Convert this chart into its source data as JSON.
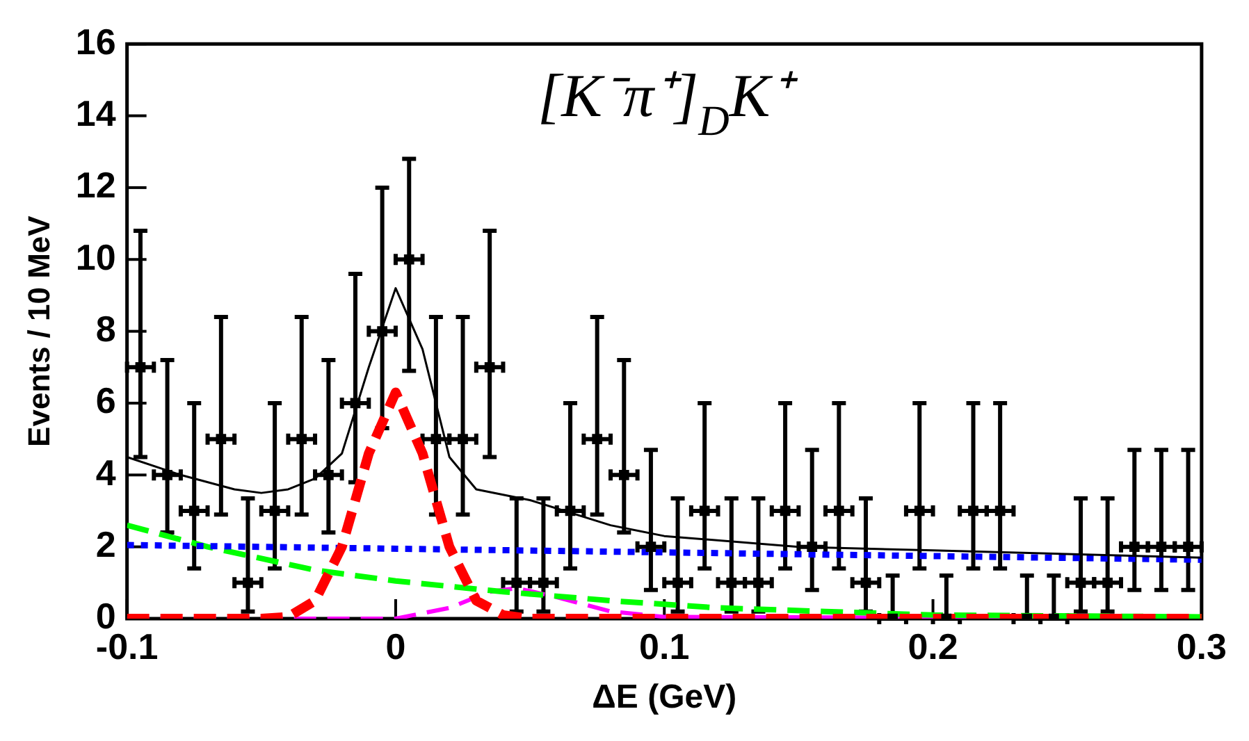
{
  "chart_data": {
    "type": "scatter",
    "title": "[K⁻π⁺]$_{D}$K⁺",
    "xlabel": "ΔE (GeV)",
    "ylabel": "Events / 10 MeV",
    "xlim": [
      -0.1,
      0.3
    ],
    "xticks": [
      -0.1,
      0,
      0.1,
      0.2,
      0.3
    ],
    "ylim": [
      0,
      16
    ],
    "yticks": [
      0,
      2,
      4,
      6,
      8,
      10,
      12,
      14,
      16
    ],
    "grid": false,
    "legend": false,
    "series": [
      {
        "color": "#000000",
        "marker": "square",
        "x": [
          -0.095,
          -0.085,
          -0.075,
          -0.065,
          -0.055,
          -0.045,
          -0.035,
          -0.025,
          -0.015,
          -0.005,
          0.005,
          0.015,
          0.025,
          0.035,
          0.045,
          0.055,
          0.065,
          0.075,
          0.085,
          0.095,
          0.105,
          0.115,
          0.125,
          0.135,
          0.145,
          0.155,
          0.165,
          0.175,
          0.185,
          0.195,
          0.205,
          0.215,
          0.225,
          0.235,
          0.245,
          0.255,
          0.265,
          0.275,
          0.285,
          0.295
        ],
        "values": [
          7,
          4,
          3,
          5,
          1,
          3,
          5,
          4,
          6,
          8,
          10,
          5,
          5,
          7,
          1,
          1,
          3,
          5,
          4,
          2,
          1,
          3,
          1,
          1,
          3,
          2,
          3,
          1,
          0,
          3,
          0,
          3,
          3,
          0,
          0,
          1,
          1,
          2,
          2,
          2
        ],
        "xerrors": [
          0.005,
          0.005,
          0.005,
          0.005,
          0.005,
          0.005,
          0.005,
          0.005,
          0.005,
          0.005,
          0.005,
          0.005,
          0.005,
          0.005,
          0.005,
          0.005,
          0.005,
          0.005,
          0.005,
          0.005,
          0.005,
          0.005,
          0.005,
          0.005,
          0.005,
          0.005,
          0.005,
          0.005,
          0.005,
          0.005,
          0.005,
          0.005,
          0.005,
          0.005,
          0.005,
          0.005,
          0.005,
          0.005,
          0.005,
          0.005
        ],
        "errors": [
          [
            4.5,
            10.8
          ],
          [
            2.4,
            7.2
          ],
          [
            1.4,
            6
          ],
          [
            2.9,
            8.4
          ],
          [
            0.2,
            3.35
          ],
          [
            1.4,
            6
          ],
          [
            2.9,
            8.4
          ],
          [
            2.4,
            7.2
          ],
          [
            3.8,
            9.6
          ],
          [
            5.3,
            12
          ],
          [
            6.9,
            12.8
          ],
          [
            2.9,
            8.4
          ],
          [
            2.9,
            8.4
          ],
          [
            4.5,
            10.8
          ],
          [
            0.2,
            3.35
          ],
          [
            0.2,
            3.35
          ],
          [
            1.4,
            6
          ],
          [
            2.9,
            8.4
          ],
          [
            2.4,
            7.2
          ],
          [
            0.8,
            4.7
          ],
          [
            0.2,
            3.35
          ],
          [
            1.4,
            6
          ],
          [
            0.2,
            3.35
          ],
          [
            0.2,
            3.35
          ],
          [
            1.4,
            6
          ],
          [
            0.8,
            4.7
          ],
          [
            1.4,
            6
          ],
          [
            0.2,
            3.35
          ],
          [
            0,
            1.2
          ],
          [
            1.4,
            6
          ],
          [
            0,
            1.2
          ],
          [
            1.4,
            6
          ],
          [
            1.4,
            6
          ],
          [
            0,
            1.2
          ],
          [
            0,
            1.2
          ],
          [
            0.2,
            3.35
          ],
          [
            0.2,
            3.35
          ],
          [
            0.8,
            4.7
          ],
          [
            0.8,
            4.7
          ],
          [
            0.8,
            4.7
          ]
        ]
      },
      {
        "type": "line",
        "color": "#000000",
        "marker": "none",
        "line_style": "solid",
        "x": [
          -0.1,
          -0.08,
          -0.06,
          -0.05,
          -0.04,
          -0.03,
          -0.02,
          -0.01,
          0,
          0.01,
          0.02,
          0.03,
          0.05,
          0.08,
          0.1,
          0.15,
          0.2,
          0.3
        ],
        "values": [
          4.5,
          4.0,
          3.6,
          3.5,
          3.6,
          3.9,
          4.6,
          7.0,
          9.2,
          7.5,
          4.5,
          3.6,
          3.3,
          2.6,
          2.3,
          2.0,
          1.9,
          1.7
        ]
      },
      {
        "type": "line",
        "color": "#ff0000",
        "marker": "none",
        "line_style": "dashed",
        "x": [
          -0.1,
          -0.05,
          -0.04,
          -0.03,
          -0.02,
          -0.01,
          0,
          0.01,
          0.02,
          0.03,
          0.04,
          0.05,
          0.3
        ],
        "values": [
          0,
          0,
          0.05,
          0.5,
          2.0,
          4.6,
          6.3,
          4.6,
          2.0,
          0.5,
          0.1,
          0,
          0
        ]
      },
      {
        "type": "line",
        "color": "#0000ff",
        "marker": "none",
        "line_style": "dotted",
        "x": [
          -0.1,
          0.3
        ],
        "values": [
          2.05,
          1.64
        ]
      },
      {
        "type": "line",
        "color": "#00ff00",
        "marker": "none",
        "line_style": "dashed",
        "x": [
          -0.1,
          -0.07,
          -0.03,
          0,
          0.04,
          0.08,
          0.12,
          0.16,
          0.2,
          0.3
        ],
        "values": [
          2.6,
          2.0,
          1.35,
          1.05,
          0.75,
          0.5,
          0.3,
          0.2,
          0.1,
          0.05
        ]
      },
      {
        "type": "line",
        "color": "#ff00ff",
        "marker": "none",
        "line_style": "dashed",
        "x": [
          -0.1,
          0,
          0.02,
          0.035,
          0.045,
          0.06,
          0.08,
          0.1,
          0.3
        ],
        "values": [
          0,
          0,
          0.3,
          0.75,
          0.85,
          0.6,
          0.2,
          0.05,
          0
        ]
      }
    ]
  }
}
